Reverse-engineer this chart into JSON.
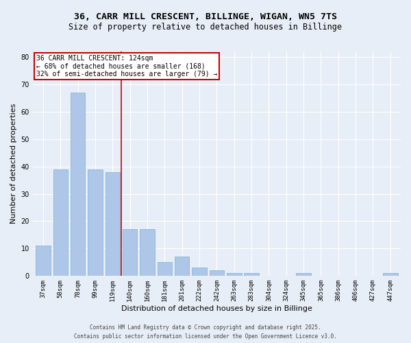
{
  "title_line1": "36, CARR MILL CRESCENT, BILLINGE, WIGAN, WN5 7TS",
  "title_line2": "Size of property relative to detached houses in Billinge",
  "xlabel": "Distribution of detached houses by size in Billinge",
  "ylabel": "Number of detached properties",
  "categories": [
    "37sqm",
    "58sqm",
    "78sqm",
    "99sqm",
    "119sqm",
    "140sqm",
    "160sqm",
    "181sqm",
    "201sqm",
    "222sqm",
    "242sqm",
    "263sqm",
    "283sqm",
    "304sqm",
    "324sqm",
    "345sqm",
    "365sqm",
    "386sqm",
    "406sqm",
    "427sqm",
    "447sqm"
  ],
  "values": [
    11,
    39,
    67,
    39,
    38,
    17,
    17,
    5,
    7,
    3,
    2,
    1,
    1,
    0,
    0,
    1,
    0,
    0,
    0,
    0,
    1
  ],
  "bar_color": "#aec6e8",
  "bar_edgecolor": "#7aafd4",
  "vline_x": 4.5,
  "vline_color": "#cc0000",
  "annotation_title": "36 CARR MILL CRESCENT: 124sqm",
  "annotation_line1": "← 68% of detached houses are smaller (168)",
  "annotation_line2": "32% of semi-detached houses are larger (79) →",
  "annotation_box_color": "#cc0000",
  "annotation_bg_color": "#ffffff",
  "footer_line1": "Contains HM Land Registry data © Crown copyright and database right 2025.",
  "footer_line2": "Contains public sector information licensed under the Open Government Licence v3.0.",
  "ylim": [
    0,
    82
  ],
  "yticks": [
    0,
    10,
    20,
    30,
    40,
    50,
    60,
    70,
    80
  ],
  "background_color": "#e8eef7",
  "grid_color": "#ffffff",
  "title_fontsize": 9.5,
  "subtitle_fontsize": 8.5,
  "tick_fontsize": 6.5,
  "label_fontsize": 8,
  "annotation_fontsize": 7,
  "footer_fontsize": 5.5
}
